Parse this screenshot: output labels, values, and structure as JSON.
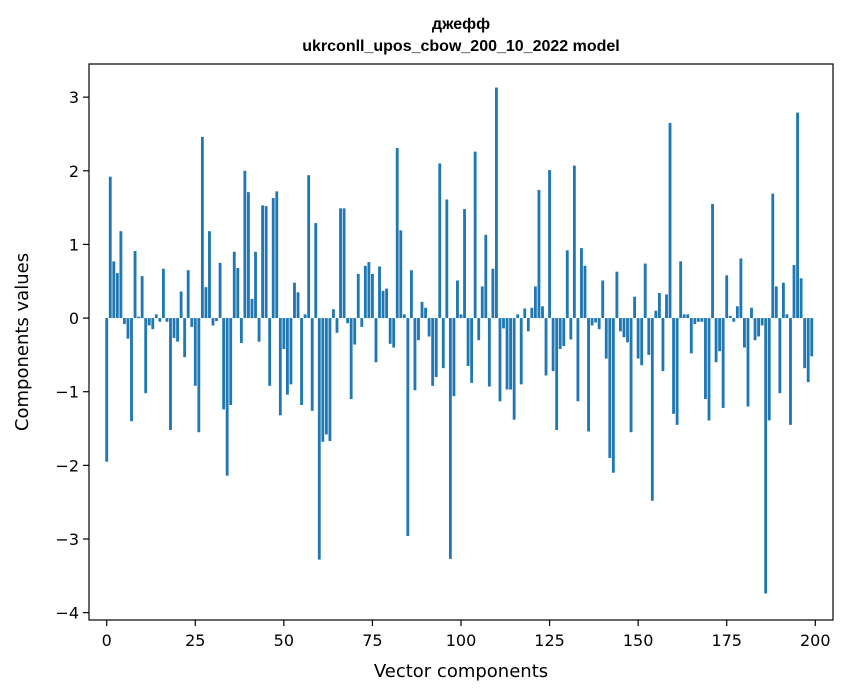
{
  "chart_data": {
    "type": "bar",
    "title": "джефф",
    "subtitle": "ukrconll_upos_cbow_200_10_2022 model",
    "xlabel": "Vector components",
    "ylabel": "Components values",
    "xlim": [
      -5,
      205
    ],
    "ylim": [
      -4.1,
      3.45
    ],
    "xticks": [
      0,
      25,
      50,
      75,
      100,
      125,
      150,
      175,
      200
    ],
    "yticks": [
      -4,
      -3,
      -2,
      -1,
      0,
      1,
      2,
      3
    ],
    "grid": false,
    "legend": "none",
    "color": "#1f77b4",
    "x": [
      0,
      1,
      2,
      3,
      4,
      5,
      6,
      7,
      8,
      9,
      10,
      11,
      12,
      13,
      14,
      15,
      16,
      17,
      18,
      19,
      20,
      21,
      22,
      23,
      24,
      25,
      26,
      27,
      28,
      29,
      30,
      31,
      32,
      33,
      34,
      35,
      36,
      37,
      38,
      39,
      40,
      41,
      42,
      43,
      44,
      45,
      46,
      47,
      48,
      49,
      50,
      51,
      52,
      53,
      54,
      55,
      56,
      57,
      58,
      59,
      60,
      61,
      62,
      63,
      64,
      65,
      66,
      67,
      68,
      69,
      70,
      71,
      72,
      73,
      74,
      75,
      76,
      77,
      78,
      79,
      80,
      81,
      82,
      83,
      84,
      85,
      86,
      87,
      88,
      89,
      90,
      91,
      92,
      93,
      94,
      95,
      96,
      97,
      98,
      99,
      100,
      101,
      102,
      103,
      104,
      105,
      106,
      107,
      108,
      109,
      110,
      111,
      112,
      113,
      114,
      115,
      116,
      117,
      118,
      119,
      120,
      121,
      122,
      123,
      124,
      125,
      126,
      127,
      128,
      129,
      130,
      131,
      132,
      133,
      134,
      135,
      136,
      137,
      138,
      139,
      140,
      141,
      142,
      143,
      144,
      145,
      146,
      147,
      148,
      149,
      150,
      151,
      152,
      153,
      154,
      155,
      156,
      157,
      158,
      159,
      160,
      161,
      162,
      163,
      164,
      165,
      166,
      167,
      168,
      169,
      170,
      171,
      172,
      173,
      174,
      175,
      176,
      177,
      178,
      179,
      180,
      181,
      182,
      183,
      184,
      185,
      186,
      187,
      188,
      189,
      190,
      191,
      192,
      193,
      194,
      195,
      196,
      197,
      198,
      199
    ],
    "values": [
      -1.95,
      1.92,
      0.77,
      0.61,
      1.18,
      -0.08,
      -0.28,
      -1.4,
      0.91,
      0.02,
      0.57,
      -1.02,
      -0.1,
      -0.15,
      0.05,
      -0.05,
      0.67,
      -0.05,
      -1.52,
      -0.27,
      -0.32,
      0.36,
      -0.53,
      0.65,
      -0.12,
      -0.92,
      -1.55,
      2.46,
      0.42,
      1.18,
      -0.1,
      -0.04,
      0.75,
      -1.24,
      -2.14,
      -1.18,
      0.9,
      0.68,
      -0.34,
      2.0,
      1.71,
      0.26,
      0.9,
      -0.32,
      1.53,
      1.52,
      -0.92,
      1.63,
      1.72,
      -1.32,
      -0.42,
      -1.04,
      -0.9,
      0.48,
      0.35,
      -1.18,
      0.05,
      1.94,
      -1.26,
      1.29,
      -3.28,
      -1.68,
      -1.58,
      -1.67,
      0.12,
      -0.2,
      1.49,
      1.49,
      -0.07,
      -1.1,
      -0.36,
      0.6,
      -0.12,
      0.71,
      0.76,
      0.6,
      -0.6,
      0.7,
      0.37,
      0.4,
      -0.35,
      -0.4,
      2.31,
      1.19,
      0.05,
      -2.96,
      0.65,
      -0.98,
      -0.3,
      0.22,
      0.14,
      -0.25,
      -0.92,
      -0.8,
      2.1,
      -0.68,
      1.61,
      -3.27,
      -1.06,
      0.51,
      0.05,
      1.48,
      -0.65,
      -0.88,
      2.26,
      -0.3,
      0.43,
      1.13,
      -0.93,
      0.67,
      3.13,
      -1.13,
      -0.14,
      -0.97,
      -0.97,
      -1.38,
      0.05,
      -0.9,
      0.13,
      -0.18,
      0.14,
      0.43,
      1.74,
      0.16,
      -0.78,
      2.01,
      -0.72,
      -1.52,
      -0.42,
      -0.38,
      0.92,
      -0.29,
      2.07,
      -1.13,
      0.95,
      0.71,
      -1.54,
      -0.1,
      -0.06,
      -0.15,
      0.51,
      -0.55,
      -1.9,
      -2.1,
      0.63,
      -0.18,
      -0.26,
      -0.33,
      -1.55,
      0.29,
      -0.55,
      -0.64,
      0.74,
      -0.5,
      -2.48,
      0.1,
      0.34,
      -0.72,
      0.32,
      2.65,
      -1.3,
      -1.45,
      0.77,
      0.05,
      0.05,
      -0.48,
      -0.08,
      -0.05,
      -0.05,
      -1.1,
      -1.39,
      1.55,
      -0.6,
      -0.45,
      -1.22,
      0.58,
      0.03,
      -0.05,
      0.16,
      0.81,
      -0.4,
      -1.2,
      0.14,
      -0.3,
      -0.25,
      -0.1,
      -3.74,
      -1.39,
      1.69,
      0.43,
      -1.02,
      0.48,
      0.05,
      -1.45,
      0.72,
      2.79,
      0.54,
      -0.68,
      -0.87,
      -0.52
    ]
  }
}
